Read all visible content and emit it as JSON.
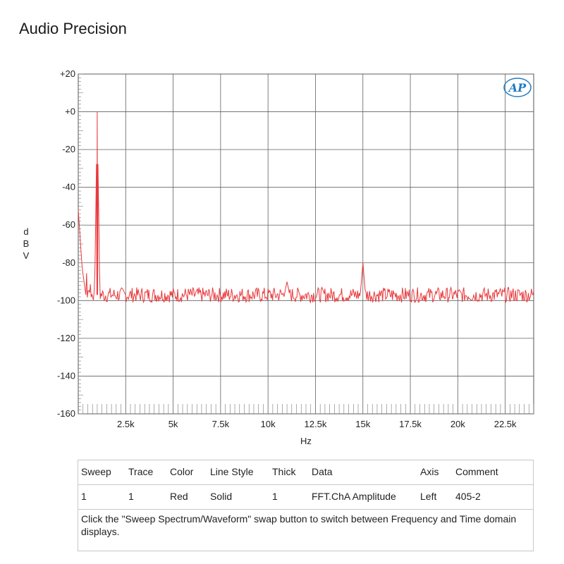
{
  "app": {
    "title": "Audio Precision"
  },
  "chart_data": {
    "type": "line",
    "xlabel": "Hz",
    "ylabel": "dBV",
    "xlim": [
      0,
      24000
    ],
    "ylim": [
      -160,
      20
    ],
    "xticks": [
      2500,
      5000,
      7500,
      10000,
      12500,
      15000,
      17500,
      20000,
      22500
    ],
    "xtick_labels": [
      "2.5k",
      "5k",
      "7.5k",
      "10k",
      "12.5k",
      "15k",
      "17.5k",
      "20k",
      "22.5k"
    ],
    "yticks": [
      20,
      0,
      -20,
      -40,
      -60,
      -80,
      -100,
      -120,
      -140,
      -160
    ],
    "ytick_labels": [
      "+20",
      "+0",
      "-20",
      "-40",
      "-60",
      "-80",
      "-100",
      "-120",
      "-140",
      "-160"
    ],
    "grid": true,
    "logo": "AP",
    "series": [
      {
        "color": "#e8393c",
        "noise_floor": -97,
        "peaks": [
          {
            "x": 0,
            "y": -52
          },
          {
            "x": 100,
            "y": -75
          },
          {
            "x": 1000,
            "y": 0
          },
          {
            "x": 11000,
            "y": -90
          },
          {
            "x": 15000,
            "y": -80
          }
        ]
      }
    ]
  },
  "legend": {
    "headers": [
      "Sweep",
      "Trace",
      "Color",
      "Line Style",
      "Thick",
      "Data",
      "Axis",
      "Comment"
    ],
    "rows": [
      [
        "1",
        "1",
        "Red",
        "Solid",
        "1",
        "FFT.ChA Amplitude",
        "Left",
        "405-2"
      ]
    ],
    "note": "Click the \"Sweep Spectrum/Waveform\" swap button to switch between Frequency and Time domain displays."
  }
}
